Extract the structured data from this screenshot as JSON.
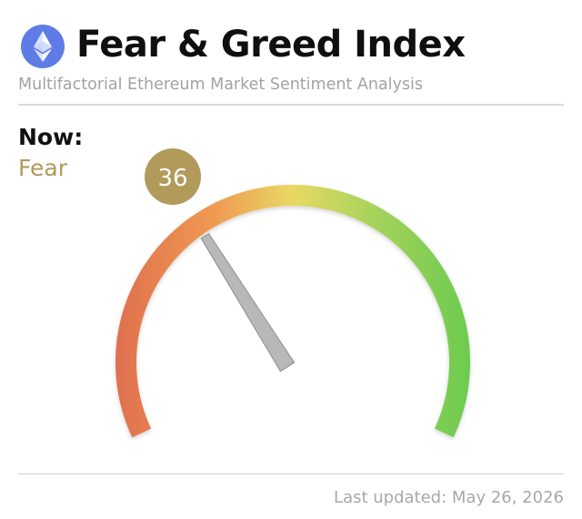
{
  "header": {
    "logo_icon": "ethereum-icon",
    "title": "Fear & Greed Index",
    "subtitle": "Multifactorial Ethereum Market Sentiment Analysis"
  },
  "current": {
    "label": "Now:",
    "sentiment": "Fear",
    "value": "36",
    "value_numeric": 36,
    "scale_min": 0,
    "scale_max": 100,
    "sentiment_color": "#b29a5b"
  },
  "gauge": {
    "gradient_colors": [
      "#e0704f",
      "#ef9a52",
      "#e8d963",
      "#a9d35c",
      "#6ccb4f"
    ]
  },
  "footer": {
    "last_updated": "Last updated: May 26, 2026"
  }
}
